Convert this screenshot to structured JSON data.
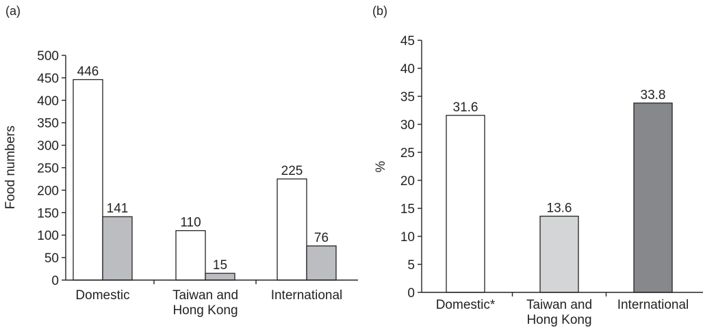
{
  "chart_data": [
    {
      "panel_label": "(a)",
      "type": "bar",
      "ylabel": "Food numbers",
      "xlabel": "",
      "ylim": [
        0,
        500
      ],
      "yticks": [
        "0",
        "50",
        "100",
        "150",
        "200",
        "250",
        "300",
        "350",
        "400",
        "450",
        "500"
      ],
      "categories": [
        {
          "lines": [
            "Domestic"
          ]
        },
        {
          "lines": [
            "Taiwan and",
            "Hong Kong"
          ]
        },
        {
          "lines": [
            "International"
          ]
        }
      ],
      "series": [
        {
          "values": [
            446,
            110,
            225
          ],
          "labels": [
            "446",
            "110",
            "225"
          ],
          "color": "#ffffff"
        },
        {
          "values": [
            141,
            15,
            76
          ],
          "labels": [
            "141",
            "15",
            "76"
          ],
          "color": "#bcbdc1"
        }
      ],
      "grid": false,
      "legend": "none"
    },
    {
      "panel_label": "(b)",
      "type": "bar",
      "ylabel": "%",
      "xlabel": "",
      "ylim": [
        0,
        45
      ],
      "yticks": [
        "0",
        "5",
        "10",
        "15",
        "20",
        "25",
        "30",
        "35",
        "40",
        "45"
      ],
      "categories": [
        {
          "lines": [
            "Domestic*"
          ]
        },
        {
          "lines": [
            "Taiwan and",
            "Hong Kong"
          ]
        },
        {
          "lines": [
            "International"
          ]
        }
      ],
      "values": [
        31.6,
        13.6,
        33.8
      ],
      "labels": [
        "31.6",
        "13.6",
        "33.8"
      ],
      "colors": [
        "#ffffff",
        "#d4d5d7",
        "#87888c"
      ],
      "grid": false,
      "legend": "none"
    }
  ]
}
